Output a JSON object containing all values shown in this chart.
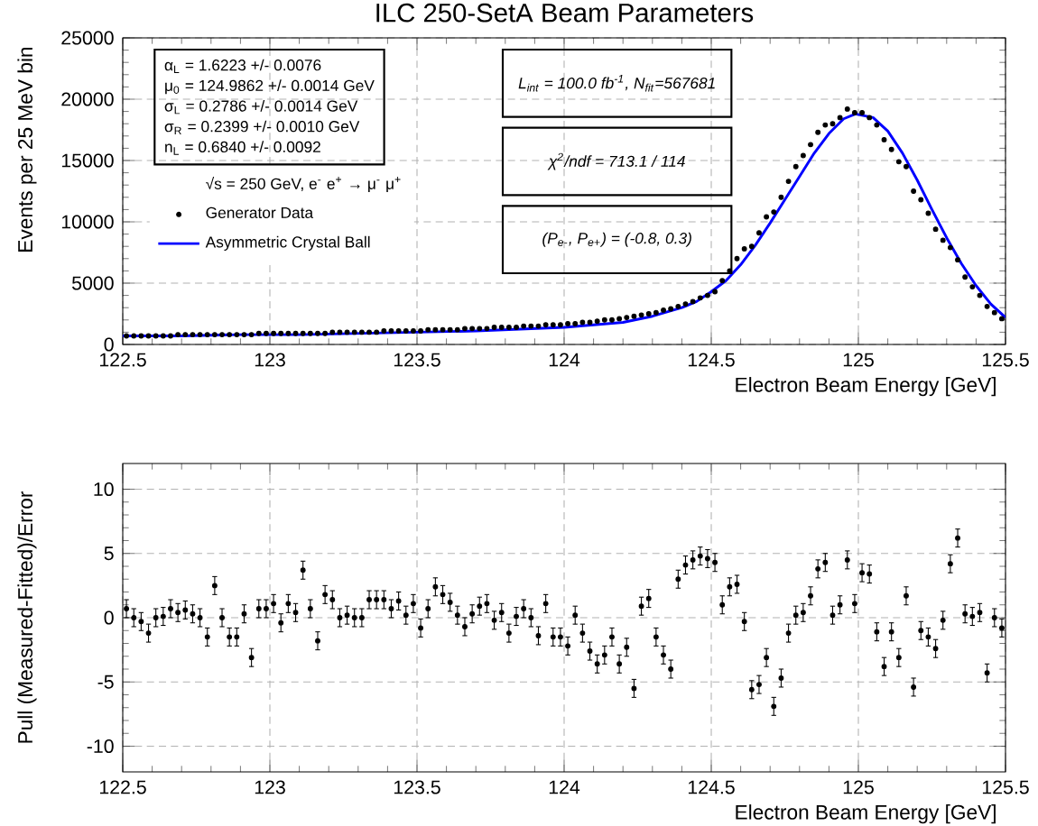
{
  "chart_data": [
    {
      "type": "scatter",
      "title": "ILC 250-SetA Beam Parameters",
      "xlabel": "Electron Beam Energy [GeV]",
      "ylabel": "Events per 25 MeV bin",
      "xlim": [
        122.5,
        125.5
      ],
      "xticks": [
        122.5,
        123,
        123.5,
        124,
        124.5,
        125,
        125.5
      ],
      "ylim": [
        0,
        25000
      ],
      "yticks": [
        0,
        5000,
        10000,
        15000,
        20000,
        25000
      ],
      "grid": true,
      "legend": "left",
      "legend_title": "√s = 250 GeV, e$^{-}$ e$^{+}$ → μ$^{-}$ μ$^{+}$",
      "annotations": [
        "α$_{L}$ =  1.6223 +/- 0.0076",
        "μ$_{0}$ =  124.9862 +/- 0.0014 GeV",
        "σ$_{L}$ =  0.2786 +/- 0.0014 GeV",
        "σ$_{R}$ =  0.2399 +/- 0.0010 GeV",
        "n$_{L}$ =  0.6840 +/- 0.0092",
        "L$_{int}$ = 100.0 fb$^{-1}$, N$_{fit}$=567681",
        "χ$^{2}$/ndf =  713.1 / 114",
        "(P$_{e-}$, P$_{e+}$) = (-0.8, 0.3)"
      ],
      "x": [
        122.5125,
        122.5375,
        122.5625,
        122.5875,
        122.6125,
        122.6375,
        122.6625,
        122.6875,
        122.7125,
        122.7375,
        122.7625,
        122.7875,
        122.8125,
        122.8375,
        122.8625,
        122.8875,
        122.9125,
        122.9375,
        122.9625,
        122.9875,
        123.0125,
        123.0375,
        123.0625,
        123.0875,
        123.1125,
        123.1375,
        123.1625,
        123.1875,
        123.2125,
        123.2375,
        123.2625,
        123.2875,
        123.3125,
        123.3375,
        123.3625,
        123.3875,
        123.4125,
        123.4375,
        123.4625,
        123.4875,
        123.5125,
        123.5375,
        123.5625,
        123.5875,
        123.6125,
        123.6375,
        123.6625,
        123.6875,
        123.7125,
        123.7375,
        123.7625,
        123.7875,
        123.8125,
        123.8375,
        123.8625,
        123.8875,
        123.9125,
        123.9375,
        123.9625,
        123.9875,
        124.0125,
        124.0375,
        124.0625,
        124.0875,
        124.1125,
        124.1375,
        124.1625,
        124.1875,
        124.2125,
        124.2375,
        124.2625,
        124.2875,
        124.3125,
        124.3375,
        124.3625,
        124.3875,
        124.4125,
        124.4375,
        124.4625,
        124.4875,
        124.5125,
        124.5375,
        124.5625,
        124.5875,
        124.6125,
        124.6375,
        124.6625,
        124.6875,
        124.7125,
        124.7375,
        124.7625,
        124.7875,
        124.8125,
        124.8375,
        124.8625,
        124.8875,
        124.9125,
        124.9375,
        124.9625,
        124.9875,
        125.0125,
        125.0375,
        125.0625,
        125.0875,
        125.1125,
        125.1375,
        125.1625,
        125.1875,
        125.2125,
        125.2375,
        125.2625,
        125.2875,
        125.3125,
        125.3375,
        125.3625,
        125.3875,
        125.4125,
        125.4375,
        125.4625,
        125.4875
      ],
      "series": [
        {
          "name": "Generator Data",
          "type": "scatter",
          "marker": "circle",
          "color": "#000000",
          "values": [
            700,
            700,
            700,
            700,
            700,
            700,
            700,
            800,
            800,
            800,
            800,
            800,
            800,
            800,
            800,
            800,
            800,
            800,
            900,
            900,
            900,
            900,
            900,
            900,
            900,
            900,
            900,
            900,
            1000,
            1000,
            1000,
            1000,
            1000,
            1000,
            1000,
            1100,
            1100,
            1100,
            1100,
            1100,
            1100,
            1200,
            1200,
            1200,
            1200,
            1200,
            1300,
            1300,
            1300,
            1300,
            1400,
            1400,
            1400,
            1400,
            1500,
            1500,
            1500,
            1600,
            1600,
            1600,
            1700,
            1700,
            1800,
            1800,
            1900,
            2000,
            2000,
            2100,
            2200,
            2300,
            2400,
            2500,
            2600,
            2800,
            2900,
            3100,
            3300,
            3500,
            3800,
            4000,
            4300,
            5200,
            6000,
            7000,
            7800,
            8000,
            9100,
            10400,
            10800,
            12000,
            13300,
            14500,
            15400,
            16300,
            17300,
            17900,
            18000,
            18500,
            19200,
            18900,
            18900,
            18500,
            17900,
            16700,
            15900,
            14900,
            14500,
            12500,
            11800,
            10700,
            9400,
            8500,
            7900,
            6900,
            5500,
            4700,
            4000,
            3100,
            2600,
            2100
          ]
        },
        {
          "name": "Asymmetric Crystal Ball",
          "type": "line",
          "color": "#0000ff",
          "x": [
            122.5,
            122.7,
            122.9,
            123.1,
            123.3,
            123.5,
            123.7,
            123.9,
            124.0,
            124.1,
            124.2,
            124.3,
            124.4,
            124.45,
            124.5,
            124.55,
            124.6,
            124.65,
            124.7,
            124.75,
            124.8,
            124.85,
            124.9,
            124.95,
            124.99,
            125.05,
            125.1,
            125.15,
            125.2,
            125.25,
            125.3,
            125.35,
            125.4,
            125.45,
            125.5
          ],
          "values": [
            700,
            700,
            800,
            800,
            900,
            1000,
            1100,
            1300,
            1400,
            1600,
            1800,
            2300,
            3000,
            3500,
            4300,
            5200,
            6500,
            8100,
            9900,
            11800,
            13700,
            15600,
            17200,
            18400,
            18800,
            18500,
            17400,
            15600,
            13400,
            11000,
            8700,
            6600,
            4800,
            3300,
            2200
          ]
        }
      ]
    },
    {
      "type": "scatter",
      "xlabel": "Electron Beam Energy [GeV]",
      "ylabel": "Pull (Measured-Fitted)/Error",
      "xlim": [
        122.5,
        125.5
      ],
      "xticks": [
        122.5,
        123,
        123.5,
        124,
        124.5,
        125,
        125.5
      ],
      "ylim": [
        -12,
        12
      ],
      "yticks": [
        -10,
        -5,
        0,
        5,
        10
      ],
      "grid": true,
      "marker": "circle",
      "color": "#000000",
      "x": [
        122.5125,
        122.5375,
        122.5625,
        122.5875,
        122.6125,
        122.6375,
        122.6625,
        122.6875,
        122.7125,
        122.7375,
        122.7625,
        122.7875,
        122.8125,
        122.8375,
        122.8625,
        122.8875,
        122.9125,
        122.9375,
        122.9625,
        122.9875,
        123.0125,
        123.0375,
        123.0625,
        123.0875,
        123.1125,
        123.1375,
        123.1625,
        123.1875,
        123.2125,
        123.2375,
        123.2625,
        123.2875,
        123.3125,
        123.3375,
        123.3625,
        123.3875,
        123.4125,
        123.4375,
        123.4625,
        123.4875,
        123.5125,
        123.5375,
        123.5625,
        123.5875,
        123.6125,
        123.6375,
        123.6625,
        123.6875,
        123.7125,
        123.7375,
        123.7625,
        123.7875,
        123.8125,
        123.8375,
        123.8625,
        123.8875,
        123.9125,
        123.9375,
        123.9625,
        123.9875,
        124.0125,
        124.0375,
        124.0625,
        124.0875,
        124.1125,
        124.1375,
        124.1625,
        124.1875,
        124.2125,
        124.2375,
        124.2625,
        124.2875,
        124.3125,
        124.3375,
        124.3625,
        124.3875,
        124.4125,
        124.4375,
        124.4625,
        124.4875,
        124.5125,
        124.5375,
        124.5625,
        124.5875,
        124.6125,
        124.6375,
        124.6625,
        124.6875,
        124.7125,
        124.7375,
        124.7625,
        124.7875,
        124.8125,
        124.8375,
        124.8625,
        124.8875,
        124.9125,
        124.9375,
        124.9625,
        124.9875,
        125.0125,
        125.0375,
        125.0625,
        125.0875,
        125.1125,
        125.1375,
        125.1625,
        125.1875,
        125.2125,
        125.2375,
        125.2625,
        125.2875,
        125.3125,
        125.3375,
        125.3625,
        125.3875,
        125.4125,
        125.4375,
        125.4625,
        125.4875
      ],
      "values": [
        0.7,
        0,
        -0.3,
        -1.2,
        0,
        0.1,
        0.7,
        0.4,
        0.6,
        0.3,
        0,
        -1.5,
        2.5,
        0,
        -1.5,
        -1.5,
        0.3,
        -3.1,
        0.7,
        0.7,
        1.1,
        -0.4,
        1.1,
        0.4,
        3.7,
        0.7,
        -1.8,
        1.8,
        1.4,
        0,
        0.2,
        0,
        0,
        1.4,
        1.4,
        1.4,
        0.7,
        1.3,
        0.2,
        1.1,
        -0.8,
        0.7,
        2.4,
        1.8,
        1.2,
        0.2,
        -0.7,
        0.3,
        0.9,
        1.1,
        -0.2,
        0.4,
        -1.2,
        0.1,
        0.7,
        0,
        -1.4,
        1.1,
        -1.5,
        -1.5,
        -2.2,
        0.2,
        -1.2,
        -2.6,
        -3.6,
        -2.9,
        -1.5,
        -3.6,
        -2.3,
        -5.5,
        0.9,
        1.5,
        -1.5,
        -2.9,
        -4.0,
        3.0,
        4.1,
        4.5,
        4.8,
        4.6,
        4.3,
        1.0,
        2.4,
        2.6,
        -0.3,
        -5.6,
        -5.2,
        -3.1,
        -6.9,
        -4.7,
        -1.2,
        0.2,
        0.4,
        1.7,
        3.8,
        4.3,
        0.2,
        1.0,
        4.5,
        1.1,
        3.5,
        3.4,
        -1.1,
        -3.8,
        -1.1,
        -3.1,
        1.7,
        -5.4,
        -1.0,
        -1.5,
        -2.4,
        -0.2,
        4.2,
        6.2,
        0.3,
        0.1,
        0.4,
        -4.3,
        0,
        -0.8
      ],
      "errors": [
        0.7,
        0.7,
        0.7,
        0.7,
        0.7,
        0.7,
        0.7,
        0.7,
        0.7,
        0.7,
        0.7,
        0.7,
        0.7,
        0.7,
        0.7,
        0.7,
        0.7,
        0.7,
        0.7,
        0.7,
        0.7,
        0.7,
        0.7,
        0.7,
        0.7,
        0.7,
        0.7,
        0.7,
        0.7,
        0.7,
        0.7,
        0.7,
        0.7,
        0.7,
        0.7,
        0.7,
        0.7,
        0.7,
        0.7,
        0.7,
        0.7,
        0.7,
        0.7,
        0.7,
        0.7,
        0.7,
        0.7,
        0.7,
        0.7,
        0.7,
        0.7,
        0.7,
        0.7,
        0.7,
        0.7,
        0.7,
        0.7,
        0.7,
        0.7,
        0.7,
        0.7,
        0.7,
        0.7,
        0.7,
        0.7,
        0.7,
        0.7,
        0.7,
        0.7,
        0.7,
        0.7,
        0.7,
        0.7,
        0.7,
        0.7,
        0.7,
        0.7,
        0.7,
        0.7,
        0.7,
        0.7,
        0.7,
        0.7,
        0.7,
        0.7,
        0.7,
        0.7,
        0.7,
        0.7,
        0.7,
        0.7,
        0.7,
        0.7,
        0.7,
        0.7,
        0.7,
        0.7,
        0.7,
        0.7,
        0.7,
        0.7,
        0.7,
        0.7,
        0.7,
        0.7,
        0.7,
        0.7,
        0.7,
        0.7,
        0.7,
        0.7,
        0.7,
        0.7,
        0.7,
        0.7,
        0.7,
        0.7,
        0.7,
        0.7,
        0.7
      ]
    }
  ]
}
